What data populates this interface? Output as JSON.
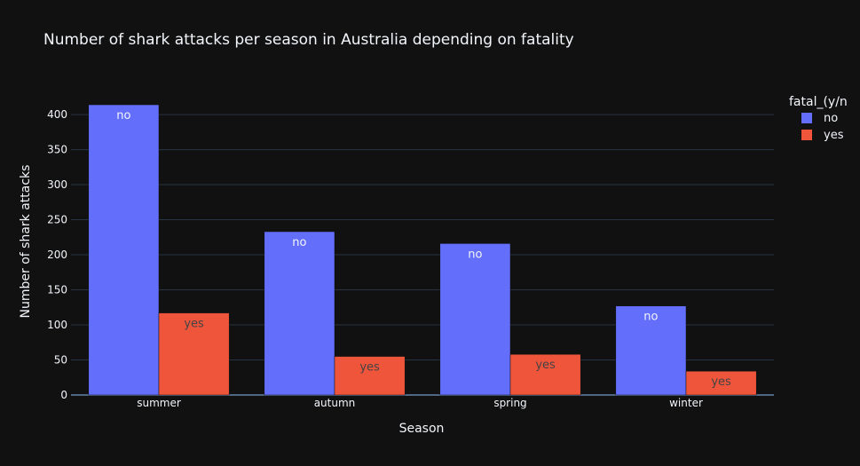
{
  "chart_data": {
    "type": "bar",
    "barmode": "group",
    "title": "Number of shark attacks per season in Australia depending on fatality",
    "xlabel": "Season",
    "ylabel": "Number of shark attacks",
    "categories": [
      "summer",
      "autumn",
      "spring",
      "winter"
    ],
    "yticks": [
      0,
      50,
      100,
      150,
      200,
      250,
      300,
      350,
      400
    ],
    "ylim": [
      0,
      430
    ],
    "grid": true,
    "legend": {
      "title": "fatal_(y/n",
      "placement": "top-right"
    },
    "series": [
      {
        "name": "no",
        "color": "#636efa",
        "label_color": "#f2f5fa",
        "values": [
          414,
          233,
          216,
          127
        ]
      },
      {
        "name": "yes",
        "color": "#ef553b",
        "label_color": "#444444",
        "values": [
          117,
          55,
          58,
          34
        ]
      }
    ]
  },
  "colors": {
    "background": "#111111",
    "grid": "#283442",
    "text": "#f2f5fa"
  }
}
